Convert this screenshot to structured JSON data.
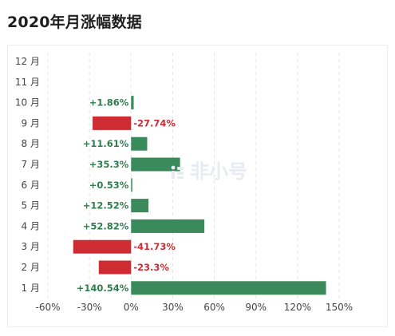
{
  "page": {
    "title": "2020年月涨幅数据"
  },
  "watermark": {
    "text": "非小号"
  },
  "chart_data": {
    "type": "bar",
    "orientation": "horizontal",
    "title": "2020年月涨幅数据",
    "xlabel": "",
    "ylabel": "",
    "categories": [
      "12 月",
      "11 月",
      "10 月",
      "9 月",
      "8 月",
      "7 月",
      "6 月",
      "5 月",
      "4 月",
      "3 月",
      "2 月",
      "1 月"
    ],
    "values": [
      null,
      null,
      1.86,
      -27.74,
      11.61,
      35.3,
      0.53,
      12.52,
      52.82,
      -41.73,
      -23.3,
      140.54
    ],
    "data_labels": [
      "",
      "",
      "+1.86%",
      "-27.74%",
      "+11.61%",
      "+35.3%",
      "+0.53%",
      "+12.52%",
      "+52.82%",
      "-41.73%",
      "-23.3%",
      "+140.54%"
    ],
    "xlim": [
      -60,
      150
    ],
    "x_ticks": [
      -60,
      -30,
      0,
      30,
      60,
      90,
      120,
      150
    ],
    "x_tick_labels": [
      "-60%",
      "-30%",
      "0%",
      "30%",
      "60%",
      "90%",
      "120%",
      "150%"
    ],
    "grid": "vertical dashed",
    "colors": {
      "positive": "#3a8a5c",
      "negative": "#cf2b33",
      "positive_label": "#2f7d4f",
      "negative_label": "#cf2b33",
      "grid": "#e3e3e3",
      "axis_text": "#444444"
    }
  }
}
